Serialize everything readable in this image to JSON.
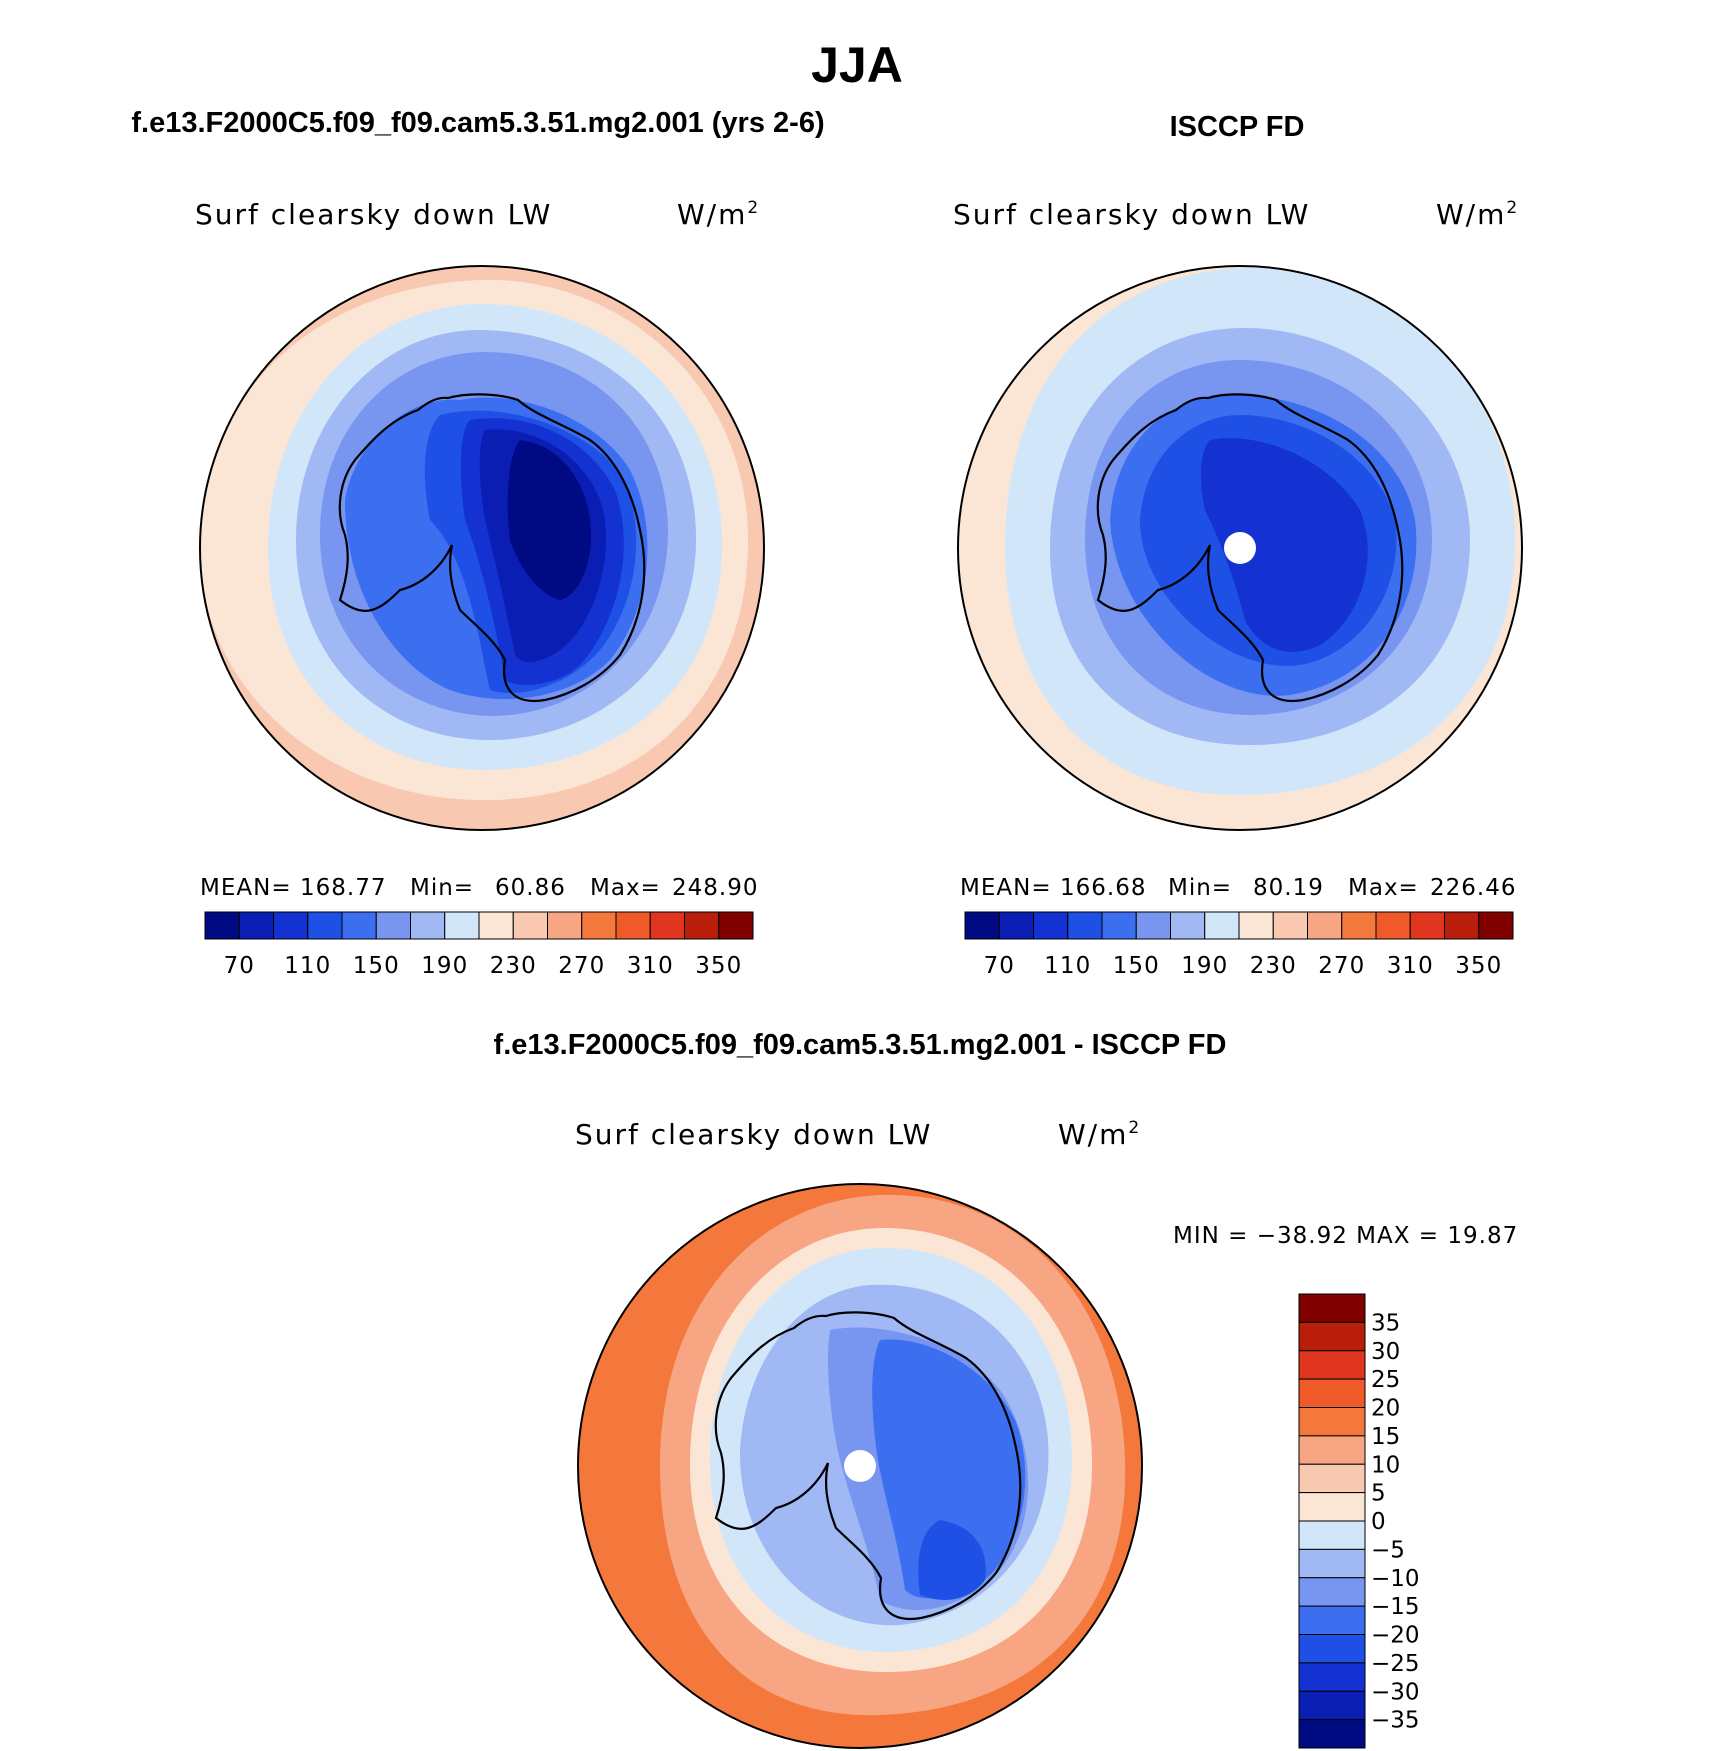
{
  "chart_data": {
    "title": "JJA",
    "panels": [
      {
        "id": "model",
        "type": "heatmap",
        "projection": "south-polar-stereographic",
        "header": "f.e13.F2000C5.f09_f09.cam5.3.51.mg2.001 (yrs 2-6)",
        "variable": "Surf clearsky down LW",
        "units": "W/m",
        "units_sup": "2",
        "stats": {
          "mean_label": "MEAN=",
          "mean": "168.77",
          "min_label": "Min=",
          "min": "60.86",
          "max_label": "Max=",
          "max": "248.90"
        },
        "pole_hole": false
      },
      {
        "id": "obs",
        "type": "heatmap",
        "projection": "south-polar-stereographic",
        "header": "ISCCP FD",
        "variable": "Surf clearsky down LW",
        "units": "W/m",
        "units_sup": "2",
        "stats": {
          "mean_label": "MEAN=",
          "mean": "166.68",
          "min_label": "Min=",
          "min": "80.19",
          "max_label": "Max=",
          "max": "226.46"
        },
        "pole_hole": true
      },
      {
        "id": "diff",
        "type": "heatmap",
        "projection": "south-polar-stereographic",
        "header": "f.e13.F2000C5.f09_f09.cam5.3.51.mg2.001 - ISCCP FD",
        "variable": "Surf clearsky down LW",
        "units": "W/m",
        "units_sup": "2",
        "stats_text": "MIN = −38.92 MAX =  19.87",
        "pole_hole": true
      }
    ],
    "field_colorbar": {
      "orientation": "horizontal",
      "colors": [
        "#000a82",
        "#0a1eb4",
        "#1432d2",
        "#1e50e6",
        "#3c6ef0",
        "#7896f0",
        "#a0b9f5",
        "#d2e6fa",
        "#fbe6d6",
        "#f9c8b0",
        "#f7a582",
        "#f4783c",
        "#ef5a28",
        "#e0351e",
        "#b91e0a",
        "#800000"
      ],
      "tick_labels": [
        "70",
        "110",
        "150",
        "190",
        "230",
        "270",
        "310",
        "350"
      ]
    },
    "diff_colorbar": {
      "orientation": "vertical",
      "colors": [
        "#000a82",
        "#0a1eb4",
        "#1432d2",
        "#1e50e6",
        "#3c6ef0",
        "#7896f0",
        "#a0b9f5",
        "#d2e6fa",
        "#fbe6d6",
        "#f9c8b0",
        "#f7a582",
        "#f4783c",
        "#ef5a28",
        "#e0351e",
        "#b91e0a",
        "#800000"
      ],
      "tick_labels": [
        "35",
        "30",
        "25",
        "20",
        "15",
        "10",
        "5",
        "0",
        "−5",
        "−10",
        "−15",
        "−20",
        "−25",
        "−30",
        "−35"
      ]
    },
    "field_levels": {
      "model": {
        "outer_ring": "#f9c8b0",
        "rings": [
          "#fbe6d6",
          "#d2e6fa",
          "#a0b9f5",
          "#7896f0",
          "#3c6ef0",
          "#1e50e6",
          "#1432d2",
          "#0a1eb4",
          "#000a82"
        ]
      },
      "obs": {
        "outer_ring": "#fbe6d6",
        "rings": [
          "#d2e6fa",
          "#a0b9f5",
          "#7896f0",
          "#3c6ef0",
          "#1e50e6",
          "#1432d2"
        ]
      },
      "diff": {
        "outer_ring": "#f4783c",
        "rings": [
          "#f7a582",
          "#fbe6d6",
          "#d2e6fa",
          "#a0b9f5",
          "#7896f0",
          "#3c6ef0",
          "#1e50e6"
        ]
      }
    }
  }
}
